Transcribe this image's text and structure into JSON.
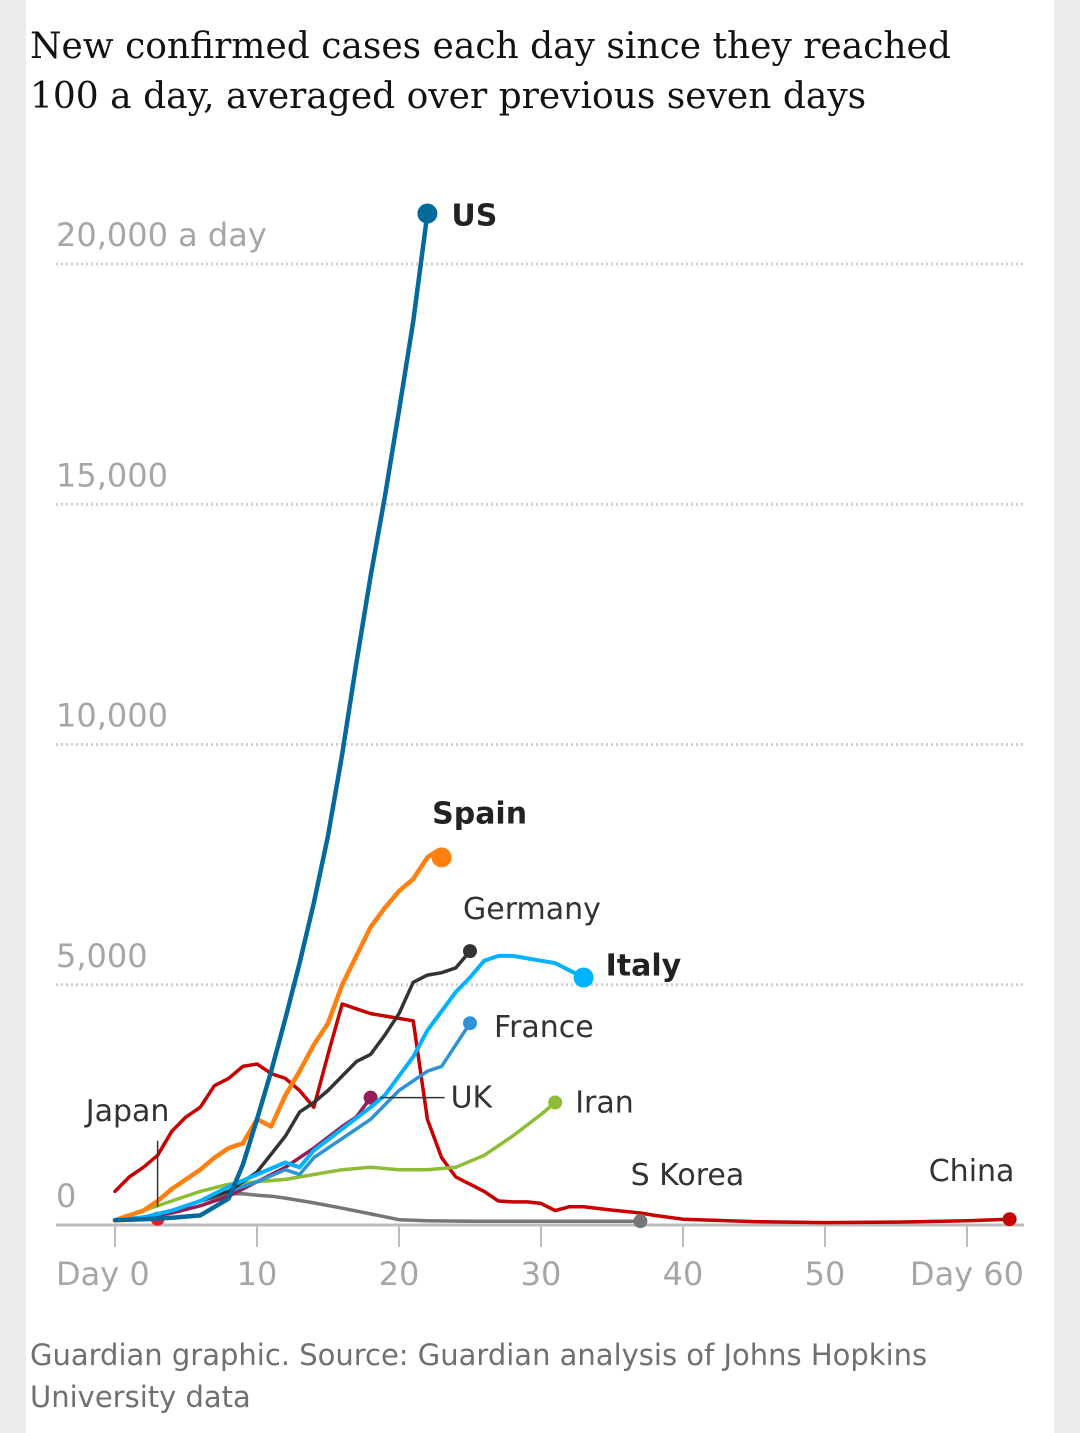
{
  "title": "New confirmed cases each day since they reached 100 a day, averaged over previous seven days",
  "source": "Guardian graphic. Source: Guardian analysis of Johns Hopkins University data",
  "chart_data": {
    "type": "line",
    "title": "New confirmed cases each day since they reached 100 a day, averaged over previous seven days",
    "xlabel": "",
    "ylabel": "",
    "xlim": [
      0,
      60
    ],
    "ylim": [
      0,
      20000
    ],
    "grid": "horizontal dotted",
    "x_ticks": [
      {
        "value": 0,
        "label": "Day 0"
      },
      {
        "value": 10,
        "label": "10"
      },
      {
        "value": 20,
        "label": "20"
      },
      {
        "value": 30,
        "label": "30"
      },
      {
        "value": 40,
        "label": "40"
      },
      {
        "value": 50,
        "label": "50"
      },
      {
        "value": 60,
        "label": "Day 60"
      }
    ],
    "y_ticks": [
      {
        "value": 0,
        "label": "0"
      },
      {
        "value": 5000,
        "label": "5,000"
      },
      {
        "value": 10000,
        "label": "10,000"
      },
      {
        "value": 15000,
        "label": "15,000"
      },
      {
        "value": 20000,
        "label": "20,000 a day"
      }
    ],
    "series": [
      {
        "name": "China",
        "color": "#c70000",
        "label_bold": false,
        "stroke": 3.5,
        "x": [
          0,
          1,
          2,
          3,
          4,
          5,
          6,
          7,
          8,
          9,
          10,
          11,
          12,
          13,
          14,
          15,
          16,
          17,
          18,
          19,
          20,
          21,
          22,
          23,
          24,
          25,
          26,
          27,
          28,
          29,
          30,
          31,
          32,
          33,
          35,
          37,
          38,
          40,
          45,
          50,
          55,
          60,
          63
        ],
        "y": [
          700,
          1000,
          1200,
          1450,
          1950,
          2250,
          2450,
          2900,
          3050,
          3300,
          3350,
          3150,
          3050,
          2800,
          2450,
          3550,
          4600,
          4500,
          4400,
          4350,
          4300,
          4250,
          2200,
          1400,
          1000,
          850,
          700,
          500,
          480,
          480,
          450,
          300,
          380,
          380,
          310,
          250,
          200,
          120,
          70,
          50,
          60,
          90,
          120
        ]
      },
      {
        "name": "Japan",
        "color": "#e31f26",
        "label_bold": false,
        "stroke": 3,
        "x": [
          0,
          1,
          2,
          3
        ],
        "y": [
          100,
          110,
          120,
          130
        ]
      },
      {
        "name": "S Korea",
        "color": "#767676",
        "label_bold": false,
        "stroke": 3.5,
        "x": [
          0,
          2,
          4,
          6,
          8,
          9,
          10,
          11,
          12,
          14,
          16,
          18,
          20,
          22,
          25,
          30,
          35,
          37
        ],
        "y": [
          100,
          150,
          300,
          500,
          650,
          650,
          620,
          600,
          560,
          460,
          350,
          230,
          110,
          90,
          80,
          80,
          80,
          80
        ]
      },
      {
        "name": "Iran",
        "color": "#8ebc34",
        "label_bold": false,
        "stroke": 3.5,
        "x": [
          0,
          2,
          4,
          6,
          8,
          10,
          12,
          14,
          16,
          18,
          20,
          22,
          24,
          26,
          28,
          30,
          31
        ],
        "y": [
          100,
          300,
          500,
          700,
          850,
          900,
          950,
          1050,
          1150,
          1200,
          1150,
          1150,
          1200,
          1450,
          1850,
          2300,
          2550
        ]
      },
      {
        "name": "UK",
        "color": "#951c55",
        "label_bold": false,
        "stroke": 3.5,
        "x": [
          0,
          2,
          4,
          6,
          8,
          10,
          12,
          14,
          16,
          17,
          18
        ],
        "y": [
          100,
          150,
          250,
          400,
          600,
          900,
          1200,
          1600,
          2050,
          2250,
          2650
        ]
      },
      {
        "name": "France",
        "color": "#2d93d6",
        "label_bold": false,
        "stroke": 3.5,
        "x": [
          0,
          2,
          4,
          6,
          8,
          10,
          12,
          13,
          14,
          16,
          18,
          20,
          22,
          23,
          24,
          25
        ],
        "y": [
          100,
          150,
          300,
          500,
          700,
          900,
          1150,
          1050,
          1400,
          1800,
          2200,
          2800,
          3200,
          3300,
          3750,
          4200
        ]
      },
      {
        "name": "Germany",
        "color": "#333333",
        "label_bold": false,
        "stroke": 3.5,
        "x": [
          0,
          2,
          4,
          6,
          8,
          10,
          12,
          13,
          14,
          15,
          16,
          17,
          18,
          19,
          20,
          21,
          22,
          23,
          24,
          25
        ],
        "y": [
          100,
          150,
          300,
          500,
          700,
          1100,
          1850,
          2350,
          2550,
          2800,
          3100,
          3400,
          3550,
          3950,
          4400,
          5050,
          5200,
          5250,
          5350,
          5700
        ]
      },
      {
        "name": "Italy",
        "color": "#00b2ff",
        "label_bold": true,
        "stroke": 4,
        "x": [
          0,
          2,
          4,
          6,
          8,
          10,
          12,
          13,
          14,
          16,
          18,
          19,
          20,
          21,
          22,
          23,
          24,
          25,
          26,
          27,
          28,
          30,
          31,
          32,
          33
        ],
        "y": [
          100,
          160,
          300,
          500,
          800,
          1050,
          1300,
          1200,
          1550,
          2000,
          2450,
          2700,
          3100,
          3500,
          4050,
          4450,
          4850,
          5150,
          5500,
          5600,
          5600,
          5500,
          5450,
          5300,
          5150
        ]
      },
      {
        "name": "Spain",
        "color": "#ff7f0f",
        "label_bold": true,
        "stroke": 4.5,
        "x": [
          0,
          2,
          3,
          4,
          5,
          6,
          7,
          8,
          9,
          10,
          11,
          12,
          13,
          14,
          15,
          16,
          17,
          18,
          19,
          20,
          21,
          22,
          22.5,
          23
        ],
        "y": [
          100,
          300,
          500,
          750,
          950,
          1150,
          1400,
          1600,
          1700,
          2200,
          2050,
          2700,
          3200,
          3750,
          4200,
          5000,
          5600,
          6200,
          6600,
          6950,
          7200,
          7650,
          7750,
          7650
        ]
      },
      {
        "name": "US",
        "color": "#05699b",
        "label_bold": true,
        "stroke": 4.5,
        "x": [
          0,
          2,
          4,
          6,
          8,
          9,
          10,
          11,
          12,
          13,
          14,
          15,
          16,
          17,
          18,
          19,
          20,
          21,
          22
        ],
        "y": [
          100,
          120,
          150,
          200,
          550,
          1250,
          2200,
          3200,
          4300,
          5450,
          6700,
          8100,
          9800,
          11700,
          13500,
          15150,
          16950,
          18800,
          21050
        ]
      }
    ],
    "labels": [
      {
        "series": "US",
        "text": "US"
      },
      {
        "series": "Spain",
        "text": "Spain"
      },
      {
        "series": "Germany",
        "text": "Germany"
      },
      {
        "series": "Italy",
        "text": "Italy"
      },
      {
        "series": "France",
        "text": "France"
      },
      {
        "series": "UK",
        "text": "UK"
      },
      {
        "series": "Iran",
        "text": "Iran"
      },
      {
        "series": "Japan",
        "text": "Japan"
      },
      {
        "series": "S Korea",
        "text": "S Korea"
      },
      {
        "series": "China",
        "text": "China"
      }
    ]
  }
}
